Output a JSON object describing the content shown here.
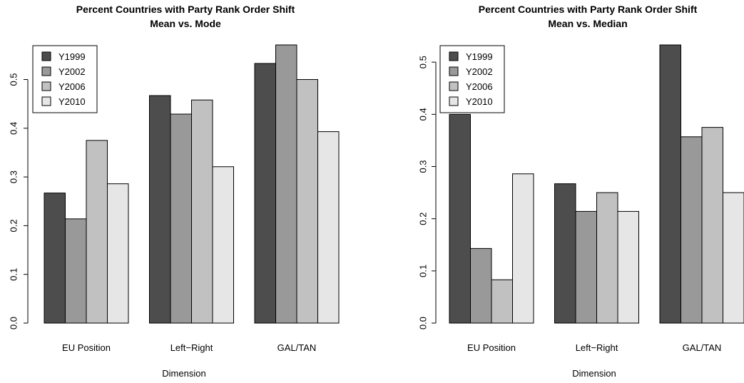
{
  "chart_data": [
    {
      "type": "bar",
      "title": "Percent Countries with Party Rank Order Shift",
      "subtitle": "Mean vs. Mode",
      "xlabel": "Dimension",
      "ylabel": "",
      "categories": [
        "EU Position",
        "Left−Right",
        "GAL/TAN"
      ],
      "yticks": [
        "0.0",
        "0.1",
        "0.2",
        "0.3",
        "0.4",
        "0.5"
      ],
      "ylim": [
        0,
        0.57
      ],
      "grid": false,
      "legend": "top-left",
      "series": [
        {
          "name": "Y1999",
          "color": "#4d4d4d",
          "values": [
            0.267,
            0.467,
            0.533
          ]
        },
        {
          "name": "Y2002",
          "color": "#999999",
          "values": [
            0.214,
            0.429,
            0.571
          ]
        },
        {
          "name": "Y2006",
          "color": "#c1c1c1",
          "values": [
            0.375,
            0.458,
            0.5
          ]
        },
        {
          "name": "Y2010",
          "color": "#e6e6e6",
          "values": [
            0.286,
            0.321,
            0.393
          ]
        }
      ]
    },
    {
      "type": "bar",
      "title": "Percent Countries with Party Rank Order Shift",
      "subtitle": "Mean vs. Median",
      "xlabel": "Dimension",
      "ylabel": "",
      "categories": [
        "EU Position",
        "Left−Right",
        "GAL/TAN"
      ],
      "yticks": [
        "0.0",
        "0.1",
        "0.2",
        "0.3",
        "0.4",
        "0.5"
      ],
      "ylim": [
        0,
        0.533
      ],
      "grid": false,
      "legend": "top-left",
      "series": [
        {
          "name": "Y1999",
          "color": "#4d4d4d",
          "values": [
            0.4,
            0.267,
            0.533
          ]
        },
        {
          "name": "Y2002",
          "color": "#999999",
          "values": [
            0.143,
            0.214,
            0.357
          ]
        },
        {
          "name": "Y2006",
          "color": "#c1c1c1",
          "values": [
            0.083,
            0.25,
            0.375
          ]
        },
        {
          "name": "Y2010",
          "color": "#e6e6e6",
          "values": [
            0.286,
            0.214,
            0.25
          ]
        }
      ]
    }
  ]
}
